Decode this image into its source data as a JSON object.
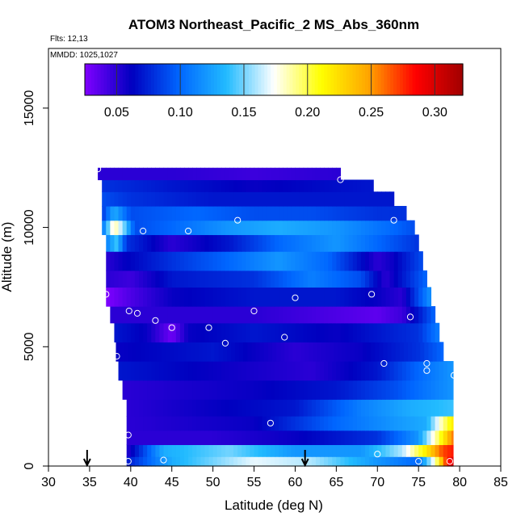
{
  "chart_data": {
    "type": "heatmap",
    "title": "ATOM3 Northeast_Pacific_2 MS_Abs_360nm",
    "flights_note": "Flts: 12,13",
    "dates_note": "MMDD: 1025,1027",
    "xlabel": "Latitude (deg N)",
    "ylabel": "Altitude (m)",
    "xlim": [
      30,
      85
    ],
    "ylim": [
      0,
      17500
    ],
    "xticks": [
      30,
      35,
      40,
      45,
      50,
      55,
      60,
      65,
      70,
      75,
      80,
      85
    ],
    "yticks": [
      0,
      5000,
      10000,
      15000
    ],
    "colorbar": {
      "range": [
        0.025,
        0.322
      ],
      "ticks": [
        0.05,
        0.1,
        0.15,
        0.2,
        0.25,
        0.3
      ],
      "tick_labels": [
        "0.05",
        "0.10",
        "0.15",
        "0.20",
        "0.25",
        "0.30"
      ],
      "colors": [
        "#8000ff",
        "#0000c0",
        "#0066ff",
        "#22bbff",
        "#ffffff",
        "#ffff00",
        "#ffa500",
        "#ff0000",
        "#a00000"
      ],
      "position": "top"
    },
    "rows": [
      {
        "ymin": 0,
        "ymax": 400,
        "x0": 39.5,
        "x1": 79.2,
        "stops": [
          [
            39.5,
            0.07
          ],
          [
            45,
            0.13
          ],
          [
            55,
            0.17
          ],
          [
            62,
            0.16
          ],
          [
            70,
            0.12
          ],
          [
            75,
            0.1
          ],
          [
            77,
            0.18
          ],
          [
            78.3,
            0.27
          ],
          [
            79.2,
            0.3
          ]
        ]
      },
      {
        "ymin": 400,
        "ymax": 900,
        "x0": 39.5,
        "x1": 79.2,
        "stops": [
          [
            39.5,
            0.05
          ],
          [
            44,
            0.13
          ],
          [
            52,
            0.15
          ],
          [
            60,
            0.12
          ],
          [
            68,
            0.12
          ],
          [
            73,
            0.16
          ],
          [
            76,
            0.22
          ],
          [
            78,
            0.27
          ],
          [
            79.2,
            0.28
          ]
        ]
      },
      {
        "ymin": 900,
        "ymax": 1500,
        "x0": 39.5,
        "x1": 79.2,
        "stops": [
          [
            39.5,
            0.05
          ],
          [
            50,
            0.05
          ],
          [
            60,
            0.06
          ],
          [
            70,
            0.08
          ],
          [
            75,
            0.12
          ],
          [
            77.5,
            0.2
          ],
          [
            79.2,
            0.26
          ]
        ]
      },
      {
        "ymin": 1500,
        "ymax": 2100,
        "x0": 39.5,
        "x1": 79.2,
        "stops": [
          [
            39.5,
            0.05
          ],
          [
            55,
            0.06
          ],
          [
            65,
            0.1
          ],
          [
            72,
            0.12
          ],
          [
            76,
            0.13
          ],
          [
            78,
            0.19
          ],
          [
            79.2,
            0.22
          ]
        ]
      },
      {
        "ymin": 2100,
        "ymax": 2800,
        "x0": 39.5,
        "x1": 79.2,
        "stops": [
          [
            39.5,
            0.05
          ],
          [
            60,
            0.07
          ],
          [
            68,
            0.11
          ],
          [
            74,
            0.13
          ],
          [
            79.2,
            0.14
          ]
        ]
      },
      {
        "ymin": 2800,
        "ymax": 3600,
        "x0": 39.0,
        "x1": 79.2,
        "stops": [
          [
            39,
            0.05
          ],
          [
            55,
            0.06
          ],
          [
            65,
            0.07
          ],
          [
            72,
            0.09
          ],
          [
            79.2,
            0.12
          ]
        ]
      },
      {
        "ymin": 3600,
        "ymax": 4400,
        "x0": 38.5,
        "x1": 79.2,
        "stops": [
          [
            38.5,
            0.07
          ],
          [
            50,
            0.06
          ],
          [
            62,
            0.05
          ],
          [
            70,
            0.07
          ],
          [
            75,
            0.1
          ],
          [
            79.2,
            0.12
          ]
        ]
      },
      {
        "ymin": 4400,
        "ymax": 5200,
        "x0": 38.2,
        "x1": 78.0,
        "stops": [
          [
            38.2,
            0.06
          ],
          [
            50,
            0.07
          ],
          [
            60,
            0.05
          ],
          [
            68,
            0.06
          ],
          [
            75,
            0.08
          ],
          [
            78,
            0.1
          ]
        ]
      },
      {
        "ymin": 5200,
        "ymax": 6000,
        "x0": 38.0,
        "x1": 77.5,
        "stops": [
          [
            38,
            0.07
          ],
          [
            42,
            0.06
          ],
          [
            45,
            0.03
          ],
          [
            47,
            0.06
          ],
          [
            55,
            0.07
          ],
          [
            65,
            0.06
          ],
          [
            75,
            0.08
          ],
          [
            77.5,
            0.11
          ]
        ]
      },
      {
        "ymin": 6000,
        "ymax": 6700,
        "x0": 37.5,
        "x1": 77.0,
        "stops": [
          [
            37.5,
            0.05
          ],
          [
            45,
            0.05
          ],
          [
            55,
            0.05
          ],
          [
            65,
            0.04
          ],
          [
            70,
            0.035
          ],
          [
            73,
            0.045
          ],
          [
            75,
            0.07
          ],
          [
            77,
            0.1
          ]
        ]
      },
      {
        "ymin": 6700,
        "ymax": 7500,
        "x0": 37.0,
        "x1": 76.5,
        "stops": [
          [
            37,
            0.025
          ],
          [
            40,
            0.04
          ],
          [
            45,
            0.06
          ],
          [
            55,
            0.07
          ],
          [
            65,
            0.07
          ],
          [
            70,
            0.06
          ],
          [
            73,
            0.05
          ],
          [
            76.5,
            0.12
          ]
        ]
      },
      {
        "ymin": 7500,
        "ymax": 8200,
        "x0": 37.0,
        "x1": 76.0,
        "stops": [
          [
            37,
            0.05
          ],
          [
            40,
            0.045
          ],
          [
            45,
            0.07
          ],
          [
            55,
            0.08
          ],
          [
            62,
            0.11
          ],
          [
            68,
            0.09
          ],
          [
            71,
            0.05
          ],
          [
            73,
            0.07
          ],
          [
            76,
            0.1
          ]
        ]
      },
      {
        "ymin": 8200,
        "ymax": 9000,
        "x0": 37.0,
        "x1": 75.5,
        "stops": [
          [
            37,
            0.05
          ],
          [
            39,
            0.06
          ],
          [
            45,
            0.08
          ],
          [
            52,
            0.1
          ],
          [
            58,
            0.12
          ],
          [
            64,
            0.1
          ],
          [
            70,
            0.05
          ],
          [
            72,
            0.06
          ],
          [
            75.5,
            0.09
          ]
        ]
      },
      {
        "ymin": 9000,
        "ymax": 9700,
        "x0": 37.0,
        "x1": 75.0,
        "stops": [
          [
            37,
            0.11
          ],
          [
            38.3,
            0.14
          ],
          [
            39.5,
            0.08
          ],
          [
            45,
            0.05
          ],
          [
            52,
            0.07
          ],
          [
            58,
            0.1
          ],
          [
            65,
            0.12
          ],
          [
            70,
            0.1
          ],
          [
            75,
            0.08
          ]
        ]
      },
      {
        "ymin": 9700,
        "ymax": 10300,
        "x0": 36.5,
        "x1": 74.5,
        "stops": [
          [
            36.5,
            0.1
          ],
          [
            38,
            0.19
          ],
          [
            39.2,
            0.15
          ],
          [
            40.5,
            0.09
          ],
          [
            45,
            0.1
          ],
          [
            52,
            0.12
          ],
          [
            58,
            0.13
          ],
          [
            65,
            0.12
          ],
          [
            72,
            0.1
          ],
          [
            74.5,
            0.09
          ]
        ]
      },
      {
        "ymin": 10300,
        "ymax": 10900,
        "x0": 36.5,
        "x1": 73.5,
        "stops": [
          [
            36.5,
            0.08
          ],
          [
            38,
            0.13
          ],
          [
            40,
            0.09
          ],
          [
            48,
            0.1
          ],
          [
            55,
            0.09
          ],
          [
            62,
            0.09
          ],
          [
            70,
            0.08
          ],
          [
            73.5,
            0.08
          ]
        ]
      },
      {
        "ymin": 10900,
        "ymax": 11500,
        "x0": 36.5,
        "x1": 72.0,
        "stops": [
          [
            36.5,
            0.09
          ],
          [
            40,
            0.08
          ],
          [
            50,
            0.07
          ],
          [
            60,
            0.07
          ],
          [
            72,
            0.07
          ]
        ]
      },
      {
        "ymin": 11500,
        "ymax": 12000,
        "x0": 36.5,
        "x1": 69.5,
        "stops": [
          [
            36.5,
            0.08
          ],
          [
            45,
            0.07
          ],
          [
            55,
            0.06
          ],
          [
            69.5,
            0.07
          ]
        ]
      },
      {
        "ymin": 12000,
        "ymax": 12500,
        "x0": 36.0,
        "x1": 65.5,
        "stops": [
          [
            36,
            0.05
          ],
          [
            45,
            0.05
          ],
          [
            55,
            0.045
          ],
          [
            65.5,
            0.05
          ]
        ]
      }
    ],
    "points": [
      [
        36.0,
        12450
      ],
      [
        65.5,
        12000
      ],
      [
        72.0,
        10300
      ],
      [
        53.0,
        10300
      ],
      [
        41.5,
        9850
      ],
      [
        47.0,
        9850
      ],
      [
        37.0,
        7200
      ],
      [
        69.3,
        7200
      ],
      [
        60.0,
        7050
      ],
      [
        39.8,
        6500
      ],
      [
        40.8,
        6400
      ],
      [
        55.0,
        6500
      ],
      [
        74.0,
        6250
      ],
      [
        43.0,
        6100
      ],
      [
        45.0,
        5800
      ],
      [
        49.5,
        5800
      ],
      [
        58.7,
        5400
      ],
      [
        51.5,
        5150
      ],
      [
        38.3,
        4600
      ],
      [
        70.8,
        4300
      ],
      [
        76.0,
        4300
      ],
      [
        76.0,
        4000
      ],
      [
        79.3,
        3800
      ],
      [
        57.0,
        1800
      ],
      [
        39.7,
        1300
      ],
      [
        70.0,
        500
      ],
      [
        39.7,
        200
      ],
      [
        44.0,
        250
      ],
      [
        75.0,
        200
      ],
      [
        78.8,
        200
      ]
    ],
    "arrows": [
      34.7,
      61.2
    ]
  }
}
